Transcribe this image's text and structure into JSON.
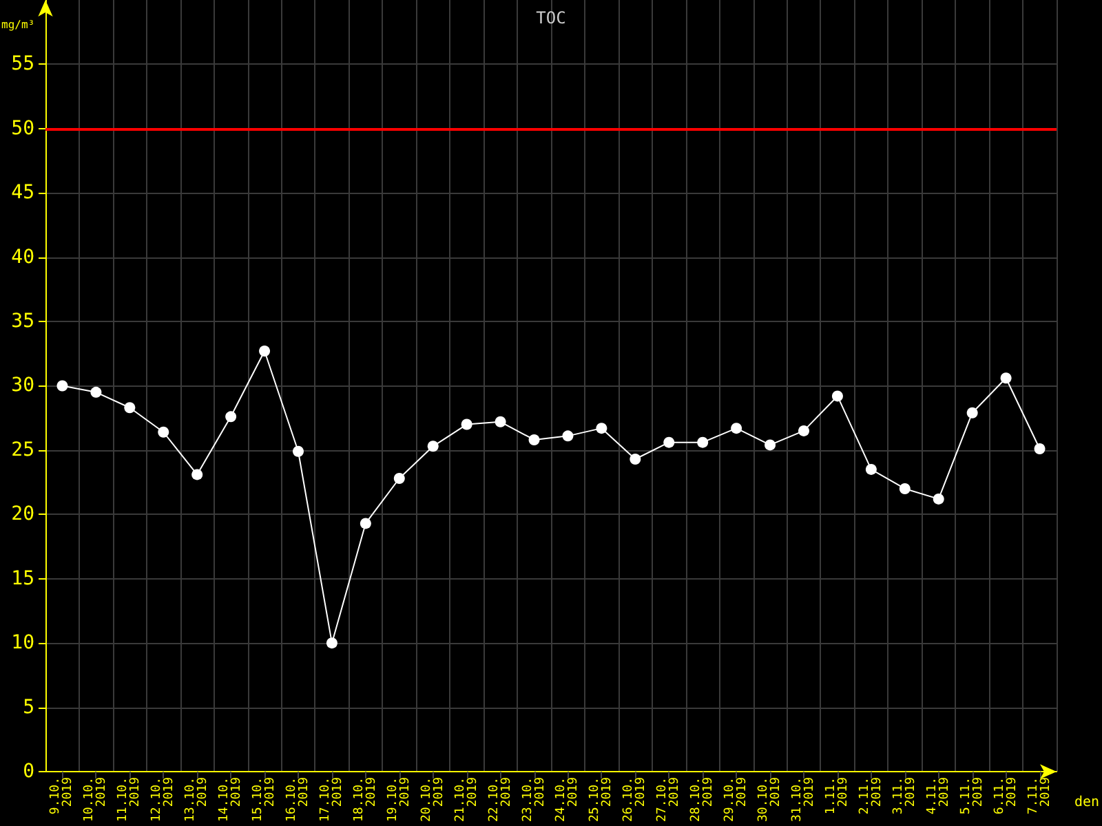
{
  "chart_data": {
    "type": "line",
    "title": "TOC",
    "ylabel": "mg/m³",
    "xlabel": "den",
    "categories": [
      "9.10.\n2019",
      "10.10.\n2019",
      "11.10.\n2019",
      "12.10.\n2019",
      "13.10.\n2019",
      "14.10.\n2019",
      "15.10.\n2019",
      "16.10.\n2019",
      "17.10.\n2019",
      "18.10.\n2019",
      "19.10.\n2019",
      "20.10.\n2019",
      "21.10.\n2019",
      "22.10.\n2019",
      "23.10.\n2019",
      "24.10.\n2019",
      "25.10.\n2019",
      "26.10.\n2019",
      "27.10.\n2019",
      "28.10.\n2019",
      "29.10.\n2019",
      "30.10.\n2019",
      "31.10.\n2019",
      "1.11.\n2019",
      "2.11.\n2019",
      "3.11.\n2019",
      "4.11.\n2019",
      "5.11.\n2019",
      "6.11.\n2019",
      "7.11.\n2019"
    ],
    "series": [
      {
        "color": "#ffffff",
        "values": [
          30.0,
          29.5,
          28.3,
          26.4,
          23.1,
          27.6,
          32.7,
          24.9,
          10.0,
          19.3,
          22.8,
          25.3,
          27.0,
          27.2,
          25.8,
          26.1,
          26.7,
          24.3,
          25.6,
          25.6,
          26.7,
          25.4,
          26.5,
          29.2,
          23.5,
          22.0,
          21.2,
          27.9,
          30.6,
          25.1
        ]
      }
    ],
    "ylim": [
      0,
      60
    ],
    "yticks": [
      0,
      5,
      10,
      15,
      20,
      25,
      30,
      35,
      40,
      45,
      50,
      55
    ],
    "ref_lines": [
      {
        "axis": "y",
        "value": 50,
        "color": "#ff0000"
      }
    ],
    "grid": true,
    "marker": "circle",
    "line_style": "solid"
  }
}
